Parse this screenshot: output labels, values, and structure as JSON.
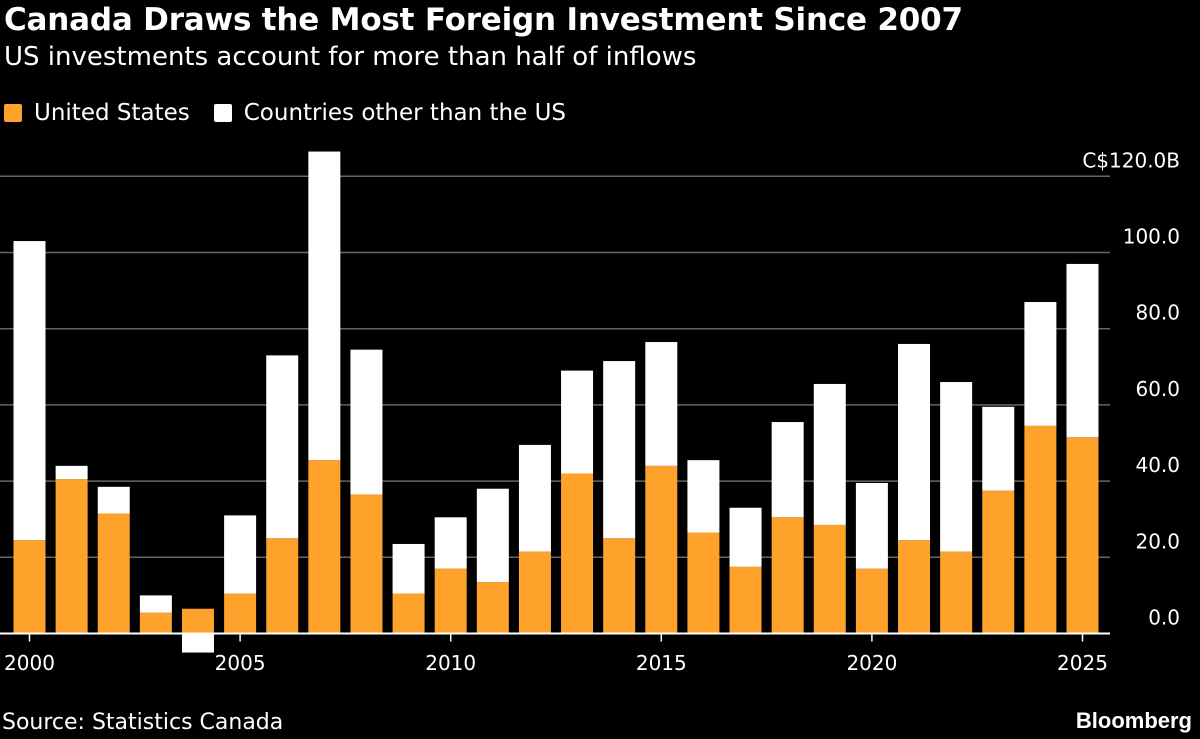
{
  "colors": {
    "us": "#ffa22c",
    "other": "#ffffff",
    "grid": "#666666",
    "background": "#000000"
  },
  "legend": {
    "us_label": "United States",
    "other_label": "Countries other than the US"
  },
  "source": "Source: Statistics Canada",
  "brand": "Bloomberg",
  "chart_data": {
    "type": "bar",
    "stacked": true,
    "title": "Canada Draws the Most Foreign Investment Since 2007",
    "subtitle": "US investments account for more than half of inflows",
    "x": [
      2000,
      2001,
      2002,
      2003,
      2004,
      2005,
      2006,
      2007,
      2008,
      2009,
      2010,
      2011,
      2012,
      2013,
      2014,
      2015,
      2016,
      2017,
      2018,
      2019,
      2020,
      2021,
      2022,
      2023,
      2024,
      2025
    ],
    "x_tick_labels": [
      "2000",
      "2005",
      "2010",
      "2015",
      "2020",
      "2025"
    ],
    "x_tick_values": [
      2000,
      2005,
      2010,
      2015,
      2020,
      2025
    ],
    "y_tick_labels": [
      "0.0",
      "20.0",
      "40.0",
      "60.0",
      "80.0",
      "100.0",
      "C$120.0B"
    ],
    "y_tick_values": [
      0,
      20,
      40,
      60,
      80,
      100,
      120
    ],
    "ylim": [
      -5,
      126
    ],
    "grid": true,
    "legend_position": "top-left",
    "series": [
      {
        "name": "United States",
        "values": [
          24.5,
          40.5,
          31.5,
          5.5,
          6.5,
          10.5,
          25,
          45.5,
          36.5,
          10.5,
          17,
          13.5,
          21.5,
          42,
          25,
          44,
          26.5,
          17.5,
          30.5,
          28.5,
          17,
          24.5,
          21.5,
          37.5,
          54.5,
          51.5
        ]
      },
      {
        "name": "Countries other than the US",
        "values": [
          78.5,
          3.5,
          7,
          4.5,
          -5,
          20.5,
          48,
          81,
          38,
          13,
          13.5,
          24.5,
          28,
          27,
          46.5,
          32.5,
          19,
          15.5,
          25,
          37,
          22.5,
          51.5,
          44.5,
          22,
          32.5,
          45.5
        ]
      }
    ]
  }
}
